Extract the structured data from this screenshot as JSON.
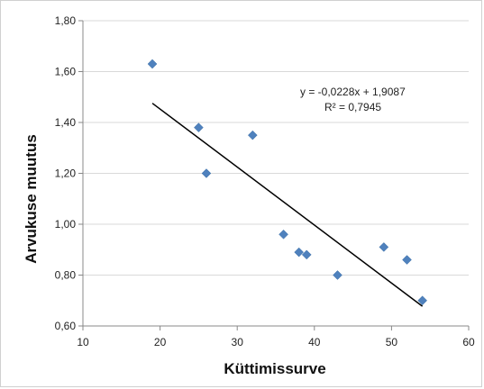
{
  "chart_data": {
    "type": "scatter",
    "xlabel": "Küttimissurve",
    "ylabel": "Arvukuse muutus",
    "xlim": [
      10,
      60
    ],
    "ylim": [
      0.6,
      1.8
    ],
    "xticks": [
      10,
      20,
      30,
      40,
      50,
      60
    ],
    "yticks": [
      0.6,
      0.8,
      1.0,
      1.2,
      1.4,
      1.6,
      1.8
    ],
    "xtick_labels": [
      "10",
      "20",
      "30",
      "40",
      "50",
      "60"
    ],
    "ytick_labels": [
      "0,60",
      "0,80",
      "1,00",
      "1,20",
      "1,40",
      "1,60",
      "1,80"
    ],
    "grid": true,
    "series": [
      {
        "points": [
          {
            "x": 19,
            "y": 1.63
          },
          {
            "x": 25,
            "y": 1.38
          },
          {
            "x": 26,
            "y": 1.2
          },
          {
            "x": 32,
            "y": 1.35
          },
          {
            "x": 36,
            "y": 0.96
          },
          {
            "x": 38,
            "y": 0.89
          },
          {
            "x": 39,
            "y": 0.88
          },
          {
            "x": 43,
            "y": 0.8
          },
          {
            "x": 49,
            "y": 0.91
          },
          {
            "x": 52,
            "y": 0.86
          },
          {
            "x": 54,
            "y": 0.7
          }
        ],
        "color": "#4f81bd"
      }
    ],
    "trendline": {
      "slope": -0.0228,
      "intercept": 1.9087,
      "x_range": [
        19,
        54
      ],
      "color": "#000000"
    },
    "annotations": {
      "equation": "y = -0,0228x + 1,9087",
      "r_squared": "R² = 0,7945"
    }
  }
}
